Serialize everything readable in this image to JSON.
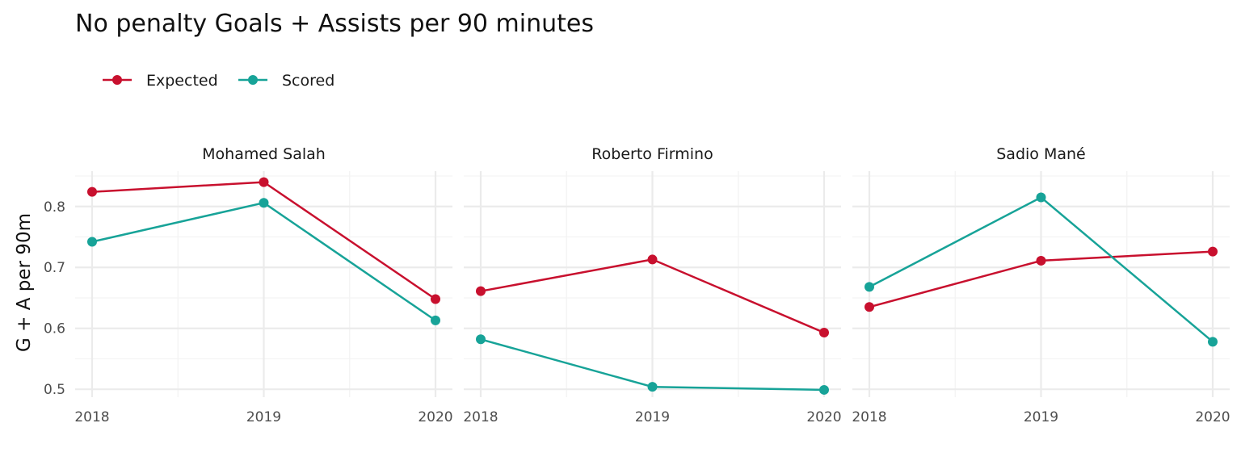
{
  "chart_data": {
    "type": "line",
    "title": "No penalty Goals + Assists per 90 minutes",
    "ylabel": "G + A per 90m",
    "xlabel": "",
    "legend_placement": "top-left",
    "grid": true,
    "x": [
      "2018",
      "2019",
      "2020"
    ],
    "y_ticks": [
      "0.5",
      "0.6",
      "0.7",
      "0.8"
    ],
    "ylim": [
      0.487,
      0.858
    ],
    "series_meta": [
      {
        "name": "Expected",
        "color": "#c8102e"
      },
      {
        "name": "Scored",
        "color": "#17a398"
      }
    ],
    "panels": [
      {
        "name": "Mohamed Salah",
        "series": [
          {
            "name": "Expected",
            "values": [
              0.824,
              0.84,
              0.648
            ]
          },
          {
            "name": "Scored",
            "values": [
              0.742,
              0.806,
              0.613
            ]
          }
        ]
      },
      {
        "name": "Roberto Firmino",
        "series": [
          {
            "name": "Expected",
            "values": [
              0.661,
              0.713,
              0.593
            ]
          },
          {
            "name": "Scored",
            "values": [
              0.582,
              0.504,
              0.499
            ]
          }
        ]
      },
      {
        "name": "Sadio Mané",
        "series": [
          {
            "name": "Expected",
            "values": [
              0.635,
              0.711,
              0.726
            ]
          },
          {
            "name": "Scored",
            "values": [
              0.668,
              0.815,
              0.578
            ]
          }
        ]
      }
    ]
  }
}
